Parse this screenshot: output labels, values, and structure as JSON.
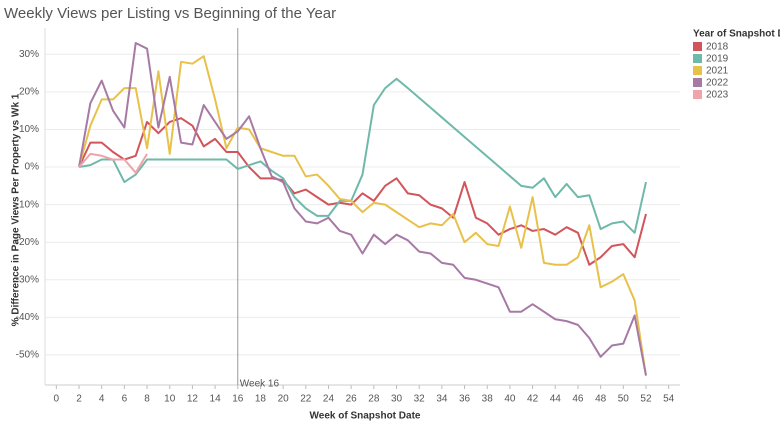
{
  "chart_data": {
    "type": "line",
    "title": "Weekly Views per Listing vs Beginning of the Year",
    "x_label": "Week of Snapshot Date",
    "y_label": "% Difference in Page Views Per Property vs Wk 1",
    "legend_title": "Year of Snapshot Date",
    "legend": "right",
    "grid": true,
    "reference_line": {
      "x": 16,
      "label": "Week 16"
    },
    "x": [
      2,
      3,
      4,
      5,
      6,
      7,
      8,
      9,
      10,
      11,
      12,
      13,
      14,
      15,
      16,
      17,
      18,
      19,
      20,
      21,
      22,
      23,
      24,
      25,
      26,
      27,
      28,
      29,
      30,
      31,
      32,
      33,
      34,
      35,
      36,
      37,
      38,
      39,
      40,
      41,
      42,
      43,
      44,
      45,
      46,
      47,
      48,
      49,
      50,
      51,
      52
    ],
    "xlim": [
      -1,
      55
    ],
    "xticks": [
      0,
      2,
      4,
      6,
      8,
      10,
      12,
      14,
      16,
      18,
      20,
      22,
      24,
      26,
      28,
      30,
      32,
      34,
      36,
      38,
      40,
      42,
      44,
      46,
      48,
      50,
      52,
      54
    ],
    "ylim": [
      -58,
      37
    ],
    "yticks": [
      {
        "value": 30,
        "label": "30%"
      },
      {
        "value": 20,
        "label": "20%"
      },
      {
        "value": 10,
        "label": "10%"
      },
      {
        "value": 0,
        "label": "0%"
      },
      {
        "value": -10,
        "label": "-10%"
      },
      {
        "value": -20,
        "label": "-20%"
      },
      {
        "value": -30,
        "label": "-30%"
      },
      {
        "value": -40,
        "label": "-40%"
      },
      {
        "value": -50,
        "label": "-50%"
      }
    ],
    "series": [
      {
        "name": "2018",
        "color": "#d1555a",
        "values": [
          0,
          6.5,
          6.5,
          4,
          2,
          3,
          12,
          9,
          12,
          13,
          11,
          5.5,
          7.5,
          4,
          4,
          0,
          -3,
          -3,
          -3.5,
          -7,
          -6,
          -8,
          -10,
          -9.5,
          -10,
          -7,
          -9,
          -5,
          -3,
          -7,
          -7.5,
          -10,
          -11,
          -13.5,
          -4,
          -13.5,
          -15,
          -18,
          -16.5,
          -15.5,
          -17,
          -16.5,
          -18,
          -16,
          -17.5,
          -26,
          -24,
          -21,
          -20.5,
          -24,
          -12.5
        ]
      },
      {
        "name": "2019",
        "color": "#6fb9aa",
        "values": [
          0,
          0.5,
          2,
          2,
          -4,
          -2,
          2,
          2,
          2,
          2,
          2,
          2,
          2,
          2,
          -0.5,
          0.5,
          1.5,
          -1,
          -3,
          -8,
          -11,
          -13,
          -13,
          -9,
          -9,
          -2,
          16.5,
          21,
          23.5,
          21,
          18.4,
          15.8,
          13.2,
          10.6,
          8,
          5.4,
          2.8,
          0.2,
          -2.4,
          -5,
          -5.5,
          -3,
          -8,
          -4.5,
          -8,
          -7.5,
          -16.5,
          -15,
          -14.5,
          -17.5,
          -4
        ]
      },
      {
        "name": "2021",
        "color": "#e8c14a",
        "values": [
          0,
          11,
          18,
          18,
          21,
          21,
          5,
          25.5,
          3.5,
          28,
          27.5,
          29.5,
          18,
          5,
          10.5,
          10,
          5,
          4,
          3,
          3,
          -2.5,
          -2,
          -5,
          -8.5,
          -9,
          -12,
          -9.5,
          -10,
          -12,
          -14,
          -16,
          -15,
          -15.5,
          -12.5,
          -20,
          -17.5,
          -20.5,
          -21,
          -10.5,
          -21.5,
          -8,
          -25.5,
          -26,
          -26,
          -24,
          -15.5,
          -32,
          -30.5,
          -28.5,
          -35.5,
          -55.5
        ]
      },
      {
        "name": "2022",
        "color": "#a77aa6",
        "values": [
          0,
          17,
          23,
          15,
          10.5,
          33,
          31.5,
          10.5,
          24,
          6.5,
          6,
          16.5,
          12,
          7.5,
          9.5,
          13.5,
          5,
          -2.5,
          -4,
          -11,
          -14.5,
          -15,
          -13.5,
          -17,
          -18,
          -23,
          -18,
          -20.5,
          -18,
          -19.5,
          -22.5,
          -23,
          -25.5,
          -26,
          -29.5,
          -30,
          -31,
          -32,
          -38.5,
          -38.5,
          -36.5,
          -38.5,
          -40.5,
          -41,
          -42,
          -45.5,
          -50.5,
          -47.5,
          -47,
          -39.5,
          -55.5
        ]
      },
      {
        "name": "2023",
        "color": "#f0a3a8",
        "values": [
          0,
          3.5,
          3,
          2,
          2,
          -1.5,
          3.5,
          null,
          null,
          null,
          null,
          null,
          null,
          null,
          null,
          null,
          null,
          null,
          null,
          null,
          null,
          null,
          null,
          null,
          null,
          null,
          null,
          null,
          null,
          null,
          null,
          null,
          null,
          null,
          null,
          null,
          null,
          null,
          null,
          null,
          null,
          null,
          null,
          null,
          null,
          null,
          null,
          null,
          null,
          null,
          null
        ]
      }
    ]
  }
}
